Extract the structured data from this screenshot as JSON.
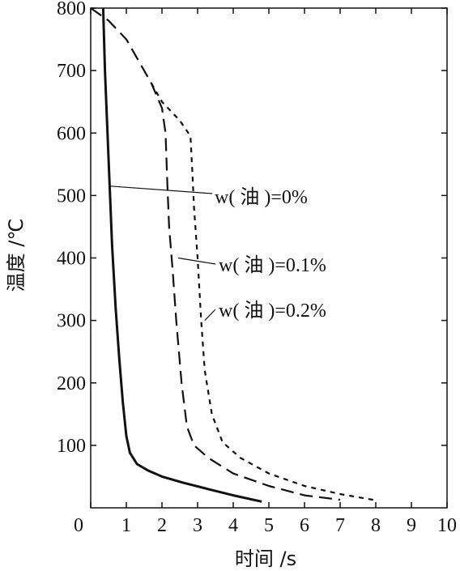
{
  "chart_data": {
    "type": "line",
    "title": "",
    "xlabel": "时间 /s",
    "ylabel": "温度 /℃",
    "xlim": [
      0,
      10
    ],
    "ylim": [
      0,
      800
    ],
    "x_ticks": [
      "0",
      "1",
      "2",
      "3",
      "4",
      "5",
      "6",
      "7",
      "8",
      "9",
      "10"
    ],
    "y_ticks": [
      "100",
      "200",
      "300",
      "400",
      "500",
      "600",
      "700",
      "800"
    ],
    "grid": false,
    "legend": "none",
    "series": [
      {
        "name": "w( 油 )=0%",
        "style": "solid",
        "points": [
          [
            0.35,
            800
          ],
          [
            0.4,
            700
          ],
          [
            0.5,
            560
          ],
          [
            0.6,
            420
          ],
          [
            0.7,
            320
          ],
          [
            0.8,
            240
          ],
          [
            0.9,
            170
          ],
          [
            1.0,
            115
          ],
          [
            1.1,
            88
          ],
          [
            1.3,
            70
          ],
          [
            1.6,
            60
          ],
          [
            2.0,
            50
          ],
          [
            2.6,
            40
          ],
          [
            3.3,
            30
          ],
          [
            4.0,
            20
          ],
          [
            4.8,
            10
          ]
        ]
      },
      {
        "name": "w( 油 )=0.1%",
        "style": "dashed",
        "points": [
          [
            0.0,
            800
          ],
          [
            0.5,
            780
          ],
          [
            1.0,
            750
          ],
          [
            1.4,
            710
          ],
          [
            1.7,
            680
          ],
          [
            2.0,
            640
          ],
          [
            2.1,
            600
          ],
          [
            2.15,
            520
          ],
          [
            2.2,
            450
          ],
          [
            2.3,
            380
          ],
          [
            2.4,
            300
          ],
          [
            2.55,
            200
          ],
          [
            2.7,
            130
          ],
          [
            2.9,
            100
          ],
          [
            3.3,
            80
          ],
          [
            4.0,
            55
          ],
          [
            5.0,
            35
          ],
          [
            6.0,
            20
          ],
          [
            7.0,
            13
          ]
        ]
      },
      {
        "name": "w( 油 )=0.2%",
        "style": "dotted",
        "points": [
          [
            1.7,
            680
          ],
          [
            2.0,
            650
          ],
          [
            2.5,
            620
          ],
          [
            2.8,
            595
          ],
          [
            2.85,
            540
          ],
          [
            2.9,
            480
          ],
          [
            3.0,
            400
          ],
          [
            3.1,
            300
          ],
          [
            3.2,
            220
          ],
          [
            3.4,
            150
          ],
          [
            3.7,
            105
          ],
          [
            4.2,
            80
          ],
          [
            5.0,
            55
          ],
          [
            6.0,
            35
          ],
          [
            7.0,
            22
          ],
          [
            8.0,
            12
          ]
        ]
      }
    ],
    "annotations": [
      {
        "text": "w( 油 )=0%",
        "series": 0
      },
      {
        "text": "w( 油 )=0.1%",
        "series": 1
      },
      {
        "text": "w( 油 )=0.2%",
        "series": 2
      }
    ]
  }
}
